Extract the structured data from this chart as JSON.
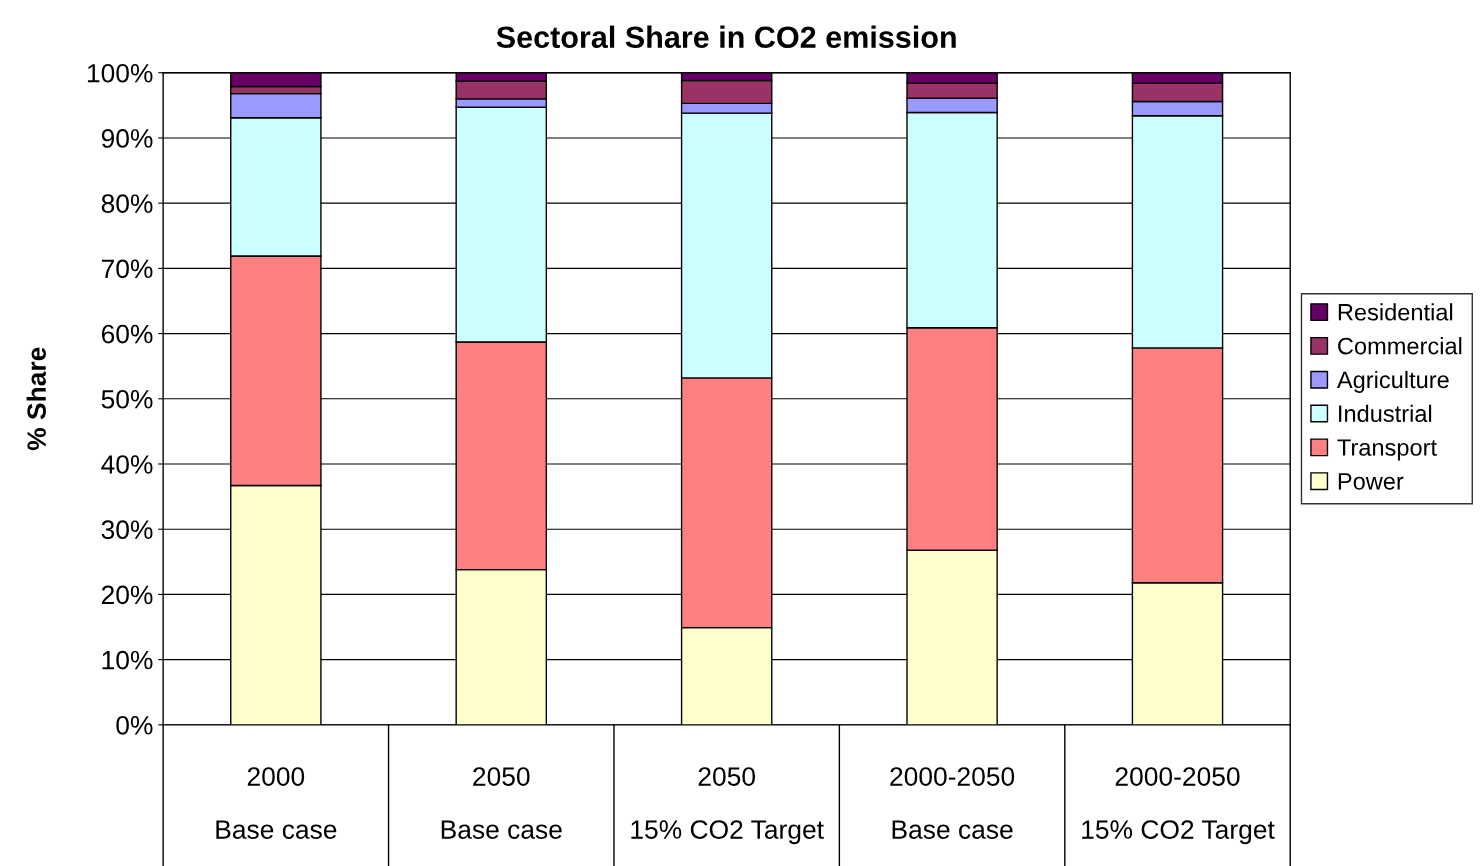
{
  "chart_data": {
    "type": "bar",
    "title": "Sectoral Share in CO2 emission",
    "ylabel": "% Share",
    "categories": [
      "2000\n\nBase case",
      "2050\n\nBase case",
      "2050\n\n15% CO2 Target",
      "2000-2050\n\nBase case",
      "2000-2050\n\n15% CO2 Target"
    ],
    "stacked": true,
    "series": [
      {
        "name": "Power",
        "color": "#ffffcc",
        "values": [
          36.7,
          23.8,
          14.9,
          26.8,
          21.8
        ]
      },
      {
        "name": "Transport",
        "color": "#ff8080",
        "values": [
          35.2,
          34.9,
          38.3,
          34.1,
          36.0
        ]
      },
      {
        "name": "Industrial",
        "color": "#ccffff",
        "values": [
          21.2,
          36.0,
          40.6,
          33.0,
          35.6
        ]
      },
      {
        "name": "Agriculture",
        "color": "#9999ff",
        "values": [
          3.7,
          1.3,
          1.5,
          2.2,
          2.2
        ]
      },
      {
        "name": "Commercial",
        "color": "#993366",
        "values": [
          1.1,
          2.7,
          3.5,
          2.3,
          2.8
        ]
      },
      {
        "name": "Residential",
        "color": "#660066",
        "values": [
          2.1,
          1.3,
          1.2,
          1.6,
          1.6
        ]
      }
    ],
    "ylim": [
      0,
      100
    ],
    "yticks": [
      {
        "value": 0,
        "label": "0%"
      },
      {
        "value": 10,
        "label": "10%"
      },
      {
        "value": 20,
        "label": "20%"
      },
      {
        "value": 30,
        "label": "30%"
      },
      {
        "value": 40,
        "label": "40%"
      },
      {
        "value": 50,
        "label": "50%"
      },
      {
        "value": 60,
        "label": "60%"
      },
      {
        "value": 70,
        "label": "70%"
      },
      {
        "value": 80,
        "label": "80%"
      },
      {
        "value": 90,
        "label": "90%"
      },
      {
        "value": 100,
        "label": "100%"
      }
    ],
    "grid": "y",
    "legend": "right"
  }
}
